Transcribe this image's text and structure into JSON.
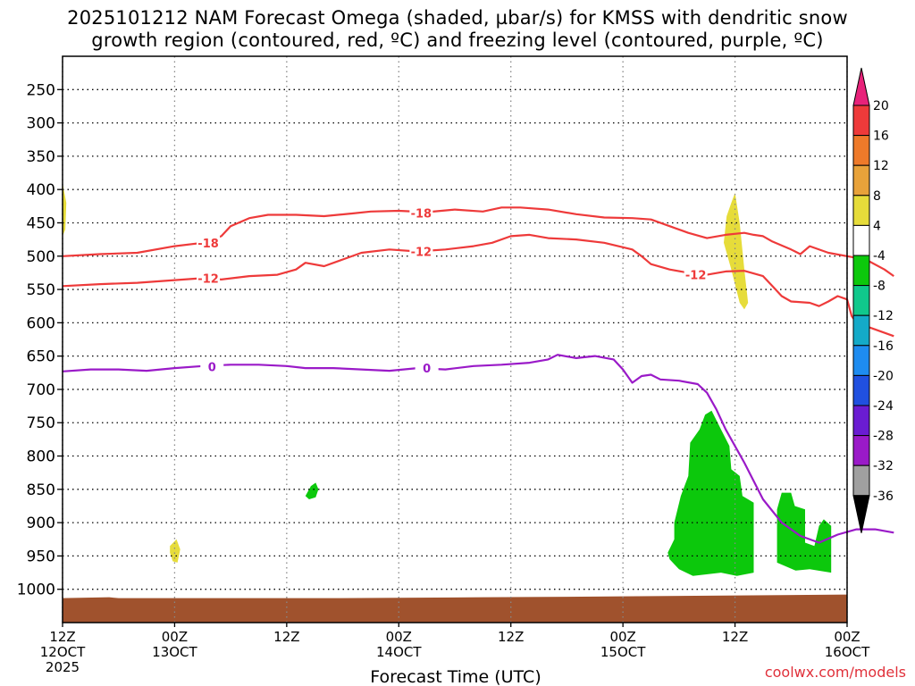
{
  "title_line1": "2025101212 NAM Forecast Omega (shaded, µbar/s) for KMSS with dendritic snow",
  "title_line2": "growth region (contoured, red, ºC) and freezing level (contoured, purple, ºC)",
  "site_label": "coolwx.com/models",
  "chart_data": {
    "type": "contour",
    "title": "2025101212 NAM Forecast Omega (shaded, µbar/s) for KMSS with dendritic snow growth region (contoured, red, ºC) and freezing level (contoured, purple, ºC)",
    "xlabel": "Forecast Time (UTC)",
    "ylabel": "",
    "xlim": [
      0,
      84
    ],
    "ylim": [
      1050,
      200
    ],
    "y_ticks": [
      250,
      300,
      350,
      400,
      450,
      500,
      550,
      600,
      650,
      700,
      750,
      800,
      850,
      900,
      950,
      1000
    ],
    "x_ticks": [
      {
        "hour": 0,
        "line1": "12Z",
        "line2": "12OCT",
        "line3": "2025"
      },
      {
        "hour": 12,
        "line1": "00Z",
        "line2": "13OCT",
        "line3": ""
      },
      {
        "hour": 24,
        "line1": "12Z",
        "line2": "",
        "line3": ""
      },
      {
        "hour": 36,
        "line1": "00Z",
        "line2": "14OCT",
        "line3": ""
      },
      {
        "hour": 48,
        "line1": "12Z",
        "line2": "",
        "line3": ""
      },
      {
        "hour": 60,
        "line1": "00Z",
        "line2": "15OCT",
        "line3": ""
      },
      {
        "hour": 72,
        "line1": "12Z",
        "line2": "",
        "line3": ""
      },
      {
        "hour": 84,
        "line1": "00Z",
        "line2": "16OCT",
        "line3": ""
      }
    ],
    "grid": true,
    "contours": [
      {
        "color": "#ee3a3a",
        "label": "-18",
        "labels_at": [
          {
            "x": 15.6,
            "y": 480
          },
          {
            "x": 38.4,
            "y": 435
          }
        ],
        "points": [
          [
            0,
            500
          ],
          [
            4,
            497
          ],
          [
            8,
            495
          ],
          [
            12,
            485
          ],
          [
            15,
            480
          ],
          [
            17,
            470
          ],
          [
            18,
            455
          ],
          [
            20,
            443
          ],
          [
            22,
            438
          ],
          [
            25,
            438
          ],
          [
            28,
            440
          ],
          [
            31,
            436
          ],
          [
            33,
            433
          ],
          [
            36,
            432
          ],
          [
            39,
            434
          ],
          [
            42,
            430
          ],
          [
            45,
            433
          ],
          [
            47,
            427
          ],
          [
            49,
            427
          ],
          [
            52,
            430
          ],
          [
            55,
            437
          ],
          [
            58,
            442
          ],
          [
            61,
            443
          ],
          [
            63,
            445
          ],
          [
            65,
            455
          ],
          [
            67,
            465
          ],
          [
            69,
            473
          ],
          [
            71,
            468
          ],
          [
            73,
            465
          ],
          [
            74,
            468
          ],
          [
            75,
            470
          ],
          [
            76,
            478
          ],
          [
            78,
            490
          ],
          [
            79,
            497
          ],
          [
            80,
            485
          ],
          [
            82,
            495
          ],
          [
            84,
            500
          ],
          [
            86,
            505
          ],
          [
            88,
            520
          ],
          [
            89,
            530
          ]
        ]
      },
      {
        "color": "#ee3a3a",
        "label": "-12",
        "labels_at": [
          {
            "x": 15.6,
            "y": 533
          },
          {
            "x": 38.4,
            "y": 493
          },
          {
            "x": 67.8,
            "y": 528
          }
        ],
        "points": [
          [
            0,
            545
          ],
          [
            4,
            542
          ],
          [
            8,
            540
          ],
          [
            12,
            536
          ],
          [
            15,
            533
          ],
          [
            17,
            535
          ],
          [
            20,
            530
          ],
          [
            23,
            528
          ],
          [
            25,
            520
          ],
          [
            26,
            510
          ],
          [
            28,
            515
          ],
          [
            30,
            505
          ],
          [
            32,
            495
          ],
          [
            35,
            490
          ],
          [
            38,
            493
          ],
          [
            41,
            490
          ],
          [
            44,
            485
          ],
          [
            46,
            480
          ],
          [
            48,
            470
          ],
          [
            50,
            468
          ],
          [
            52,
            473
          ],
          [
            55,
            475
          ],
          [
            58,
            480
          ],
          [
            61,
            490
          ],
          [
            62,
            500
          ],
          [
            63,
            512
          ],
          [
            65,
            520
          ],
          [
            67,
            525
          ],
          [
            69,
            528
          ],
          [
            71,
            523
          ],
          [
            73,
            522
          ],
          [
            75,
            530
          ],
          [
            76,
            545
          ],
          [
            77,
            560
          ],
          [
            78,
            568
          ],
          [
            80,
            570
          ],
          [
            81,
            575
          ],
          [
            82,
            568
          ],
          [
            83,
            560
          ],
          [
            84,
            565
          ],
          [
            84.5,
            590
          ],
          [
            85,
            600
          ],
          [
            87,
            610
          ],
          [
            89,
            620
          ]
        ]
      },
      {
        "color": "#9a1ac8",
        "label": "0",
        "labels_at": [
          {
            "x": 16,
            "y": 666
          },
          {
            "x": 39,
            "y": 668
          }
        ],
        "points": [
          [
            0,
            673
          ],
          [
            3,
            670
          ],
          [
            6,
            670
          ],
          [
            9,
            672
          ],
          [
            12,
            668
          ],
          [
            15,
            665
          ],
          [
            18,
            663
          ],
          [
            21,
            663
          ],
          [
            24,
            665
          ],
          [
            26,
            668
          ],
          [
            29,
            668
          ],
          [
            32,
            670
          ],
          [
            35,
            672
          ],
          [
            38,
            668
          ],
          [
            41,
            670
          ],
          [
            44,
            665
          ],
          [
            47,
            663
          ],
          [
            50,
            660
          ],
          [
            52,
            655
          ],
          [
            53,
            648
          ],
          [
            55,
            653
          ],
          [
            57,
            650
          ],
          [
            59,
            655
          ],
          [
            60,
            670
          ],
          [
            61,
            690
          ],
          [
            62,
            680
          ],
          [
            63,
            678
          ],
          [
            64,
            685
          ],
          [
            66,
            687
          ],
          [
            68,
            692
          ],
          [
            69,
            705
          ],
          [
            70,
            730
          ],
          [
            71,
            760
          ],
          [
            73,
            810
          ],
          [
            75,
            865
          ],
          [
            77,
            900
          ],
          [
            79,
            920
          ],
          [
            81,
            930
          ],
          [
            83,
            918
          ],
          [
            85,
            910
          ],
          [
            87,
            910
          ],
          [
            89,
            915
          ]
        ]
      }
    ],
    "shaded_regions": [
      {
        "color": "#e6dc3a",
        "range": "4 to 8",
        "points": [
          [
            0,
            390
          ],
          [
            0.4,
            420
          ],
          [
            0.3,
            460
          ],
          [
            0,
            470
          ]
        ]
      },
      {
        "color": "#e6dc3a",
        "range": "4 to 8",
        "points": [
          [
            11.5,
            935
          ],
          [
            12.2,
            925
          ],
          [
            12.6,
            940
          ],
          [
            12.3,
            960
          ],
          [
            11.8,
            958
          ],
          [
            11.5,
            945
          ]
        ]
      },
      {
        "color": "#e6dc3a",
        "range": "4 to 8",
        "points": [
          [
            72,
            405
          ],
          [
            72.5,
            450
          ],
          [
            73,
            520
          ],
          [
            73.4,
            570
          ],
          [
            73,
            580
          ],
          [
            72.5,
            570
          ],
          [
            71.6,
            520
          ],
          [
            70.8,
            480
          ],
          [
            71.1,
            440
          ],
          [
            71.6,
            420
          ]
        ]
      },
      {
        "color": "#0cc80c",
        "range": "-8 to -4",
        "points": [
          [
            26,
            860
          ],
          [
            26.6,
            845
          ],
          [
            27.1,
            840
          ],
          [
            27.4,
            850
          ],
          [
            27.1,
            862
          ],
          [
            26.4,
            865
          ]
        ]
      },
      {
        "color": "#0cc80c",
        "range": "-8 to -4",
        "points": [
          [
            64.8,
            945
          ],
          [
            65.5,
            925
          ],
          [
            65.5,
            900
          ],
          [
            66.2,
            860
          ],
          [
            67,
            830
          ],
          [
            67.2,
            780
          ],
          [
            68.2,
            760
          ],
          [
            68.8,
            738
          ],
          [
            69.5,
            732
          ],
          [
            70.5,
            760
          ],
          [
            71.4,
            785
          ],
          [
            71.6,
            820
          ],
          [
            72.5,
            830
          ],
          [
            72.8,
            860
          ],
          [
            74,
            870
          ],
          [
            74,
            975
          ],
          [
            72.2,
            980
          ],
          [
            70.5,
            975
          ],
          [
            67.5,
            980
          ],
          [
            66,
            970
          ],
          [
            65,
            955
          ]
        ]
      },
      {
        "color": "#0cc80c",
        "range": "-8 to -4",
        "points": [
          [
            76.5,
            880
          ],
          [
            77,
            855
          ],
          [
            78,
            855
          ],
          [
            78.4,
            875
          ],
          [
            79.5,
            880
          ],
          [
            79.5,
            930
          ],
          [
            80.5,
            935
          ],
          [
            81,
            905
          ],
          [
            81.5,
            895
          ],
          [
            82.3,
            905
          ],
          [
            82.3,
            975
          ],
          [
            80,
            970
          ],
          [
            78.5,
            972
          ],
          [
            76.5,
            960
          ]
        ]
      }
    ],
    "surface_fill": {
      "color": "#a0522d",
      "top_mb": 1008
    },
    "colorbar": {
      "levels": [
        "20",
        "16",
        "12",
        "8",
        "4",
        "-4",
        "-8",
        "-12",
        "-16",
        "-20",
        "-24",
        "-28",
        "-32",
        "-36"
      ],
      "colors": [
        "#e8227a",
        "#ee3a3a",
        "#ee7a2a",
        "#e8a23a",
        "#e6dc3a",
        "#ffffff",
        "#0cc80c",
        "#10c88c",
        "#14aac8",
        "#1e8cf0",
        "#2050e0",
        "#6a1cd2",
        "#9a1ac8",
        "#a0a0a0",
        "#000000"
      ]
    }
  }
}
